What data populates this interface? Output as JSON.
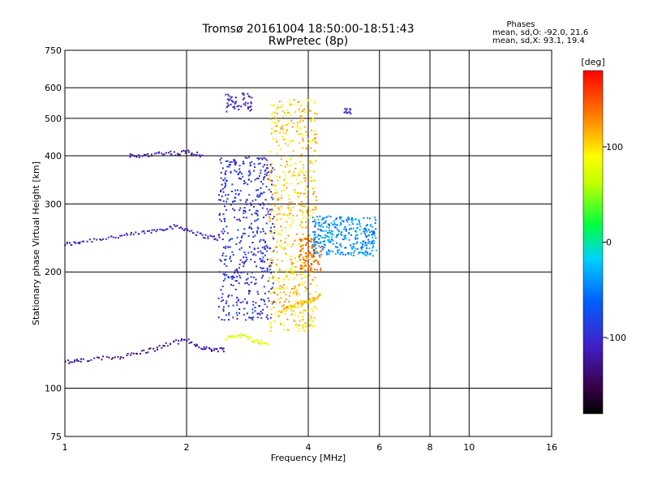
{
  "chart_data": {
    "type": "scatter",
    "title": "Tromsø 20161004 18:50:00-18:51:43",
    "subtitle": "RwPretec (8p)",
    "stats": {
      "heading": "Phases",
      "line_o": "mean, sd,O: -92.0, 21.6",
      "line_x": "mean, sd,X:  93.1, 19.4"
    },
    "xlabel": "Frequency [MHz]",
    "ylabel": "Stationary phase Virtual Height [km]",
    "xscale": "log",
    "yscale": "log",
    "xlim": [
      1,
      16
    ],
    "ylim": [
      75,
      750
    ],
    "xticks": [
      1,
      2,
      4,
      6,
      8,
      10,
      16
    ],
    "yticks": [
      75,
      100,
      200,
      300,
      400,
      500,
      600,
      750
    ],
    "grid": true,
    "colorbar": {
      "label": "[deg]",
      "range": [
        -180,
        180
      ],
      "ticks": [
        100,
        0,
        -100
      ]
    },
    "traces": [
      {
        "x": [
          1.0,
          1.05,
          1.1,
          1.2,
          1.3,
          1.4,
          1.5,
          1.6,
          1.7,
          1.8,
          1.9,
          2.0,
          2.1,
          2.2,
          2.3,
          2.4
        ],
        "y": [
          236,
          237,
          240,
          243,
          246,
          248,
          251,
          254,
          257,
          261,
          262,
          258,
          252,
          248,
          246,
          244
        ],
        "phase": -110
      },
      {
        "x": [
          1.45,
          1.5,
          1.6,
          1.7,
          1.8,
          1.9,
          2.0,
          2.1,
          2.2
        ],
        "y": [
          400,
          398,
          402,
          405,
          408,
          404,
          410,
          406,
          400
        ],
        "phase": -120
      },
      {
        "x": [
          1.0,
          1.05,
          1.1,
          1.2,
          1.3,
          1.4,
          1.5,
          1.6,
          1.7,
          1.8,
          1.9,
          2.0,
          2.1,
          2.2,
          2.3,
          2.4,
          2.5
        ],
        "y": [
          117,
          117,
          118,
          119,
          120,
          121,
          123,
          125,
          127,
          130,
          132,
          133,
          130,
          127,
          126,
          126,
          126
        ],
        "phase": -125
      },
      {
        "x": [
          2.5,
          2.6,
          2.7,
          2.8,
          2.9,
          3.0,
          3.1,
          3.2
        ],
        "y": [
          135,
          136,
          137,
          136,
          134,
          132,
          131,
          130
        ],
        "phase": 80
      },
      {
        "x": [
          3.4,
          3.5,
          3.6,
          3.7,
          3.8,
          3.9,
          4.0,
          4.1,
          4.2,
          4.3
        ],
        "y": [
          158,
          160,
          162,
          163,
          165,
          166,
          168,
          170,
          172,
          175
        ],
        "phase": 110
      }
    ],
    "clusters": [
      {
        "x": [
          2.4,
          3.3
        ],
        "y": [
          150,
          400
        ],
        "n": 520,
        "phase": -95,
        "spread": 20
      },
      {
        "x": [
          3.2,
          4.2
        ],
        "y": [
          140,
          560
        ],
        "n": 600,
        "phase": 105,
        "spread": 25
      },
      {
        "x": [
          4.1,
          5.9
        ],
        "y": [
          220,
          280
        ],
        "n": 320,
        "phase": -45,
        "spread": 25
      },
      {
        "x": [
          2.5,
          2.9
        ],
        "y": [
          520,
          580
        ],
        "n": 50,
        "phase": -110,
        "spread": 10
      },
      {
        "x": [
          3.8,
          4.3
        ],
        "y": [
          200,
          245
        ],
        "n": 80,
        "phase": 145,
        "spread": 10
      },
      {
        "x": [
          4.9,
          5.1
        ],
        "y": [
          510,
          530
        ],
        "n": 12,
        "phase": -100,
        "spread": 8
      }
    ]
  }
}
